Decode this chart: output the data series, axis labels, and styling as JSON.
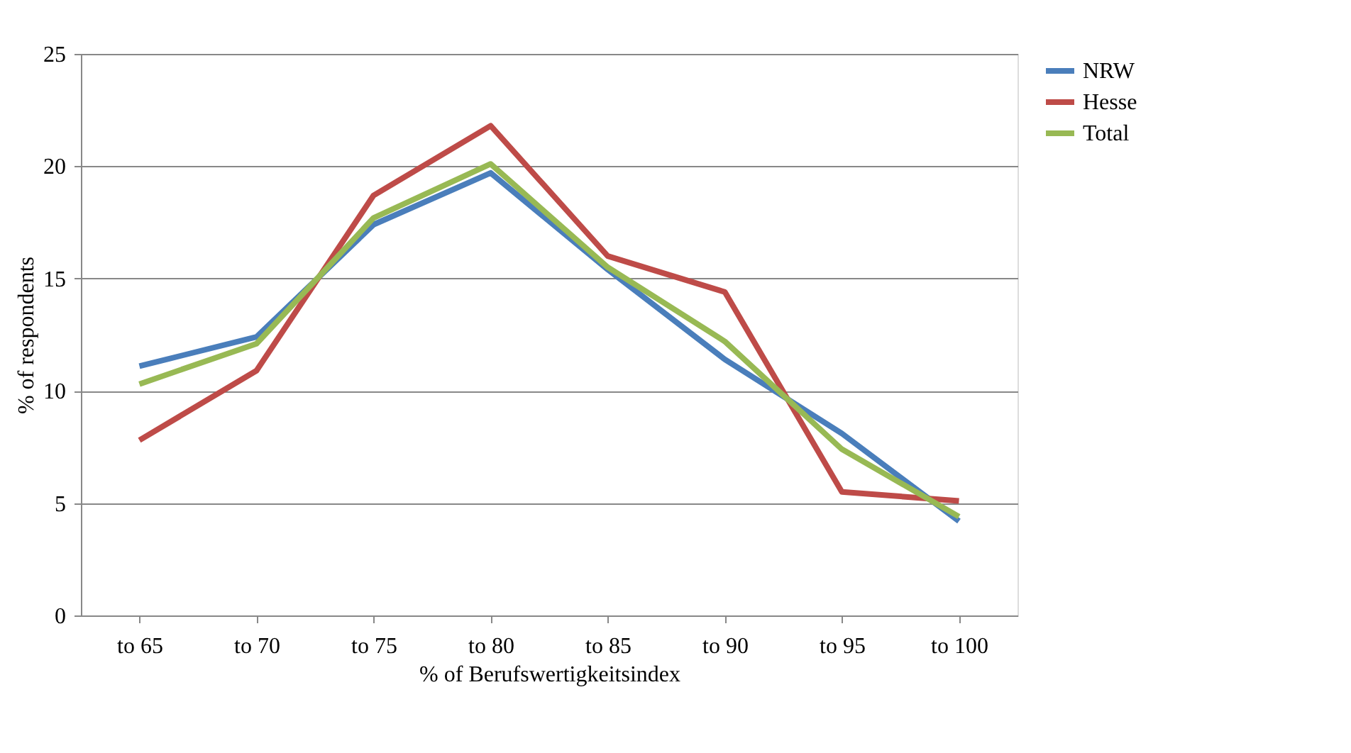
{
  "chart_data": {
    "type": "line",
    "xlabel": "% of Berufswertigkeitsindex",
    "ylabel": "% of respondents",
    "categories": [
      "to 65",
      "to 70",
      "to 75",
      "to 80",
      "to 85",
      "to 90",
      "to 95",
      "to 100"
    ],
    "series": [
      {
        "name": "NRW",
        "color": "#4a7ebb",
        "values": [
          11.1,
          12.4,
          17.4,
          19.7,
          15.4,
          11.4,
          8.1,
          4.2
        ]
      },
      {
        "name": "Hesse",
        "color": "#be4b48",
        "values": [
          7.8,
          10.9,
          18.7,
          21.8,
          16.0,
          14.4,
          5.5,
          5.1
        ]
      },
      {
        "name": "Total",
        "color": "#98b954",
        "values": [
          10.3,
          12.1,
          17.7,
          20.1,
          15.5,
          12.2,
          7.4,
          4.4
        ]
      }
    ],
    "ylim": [
      0,
      25
    ],
    "yticks": [
      0,
      5,
      10,
      15,
      20,
      25
    ],
    "grid": "y",
    "legend": "right",
    "marker": "none",
    "line_style": "solid"
  }
}
